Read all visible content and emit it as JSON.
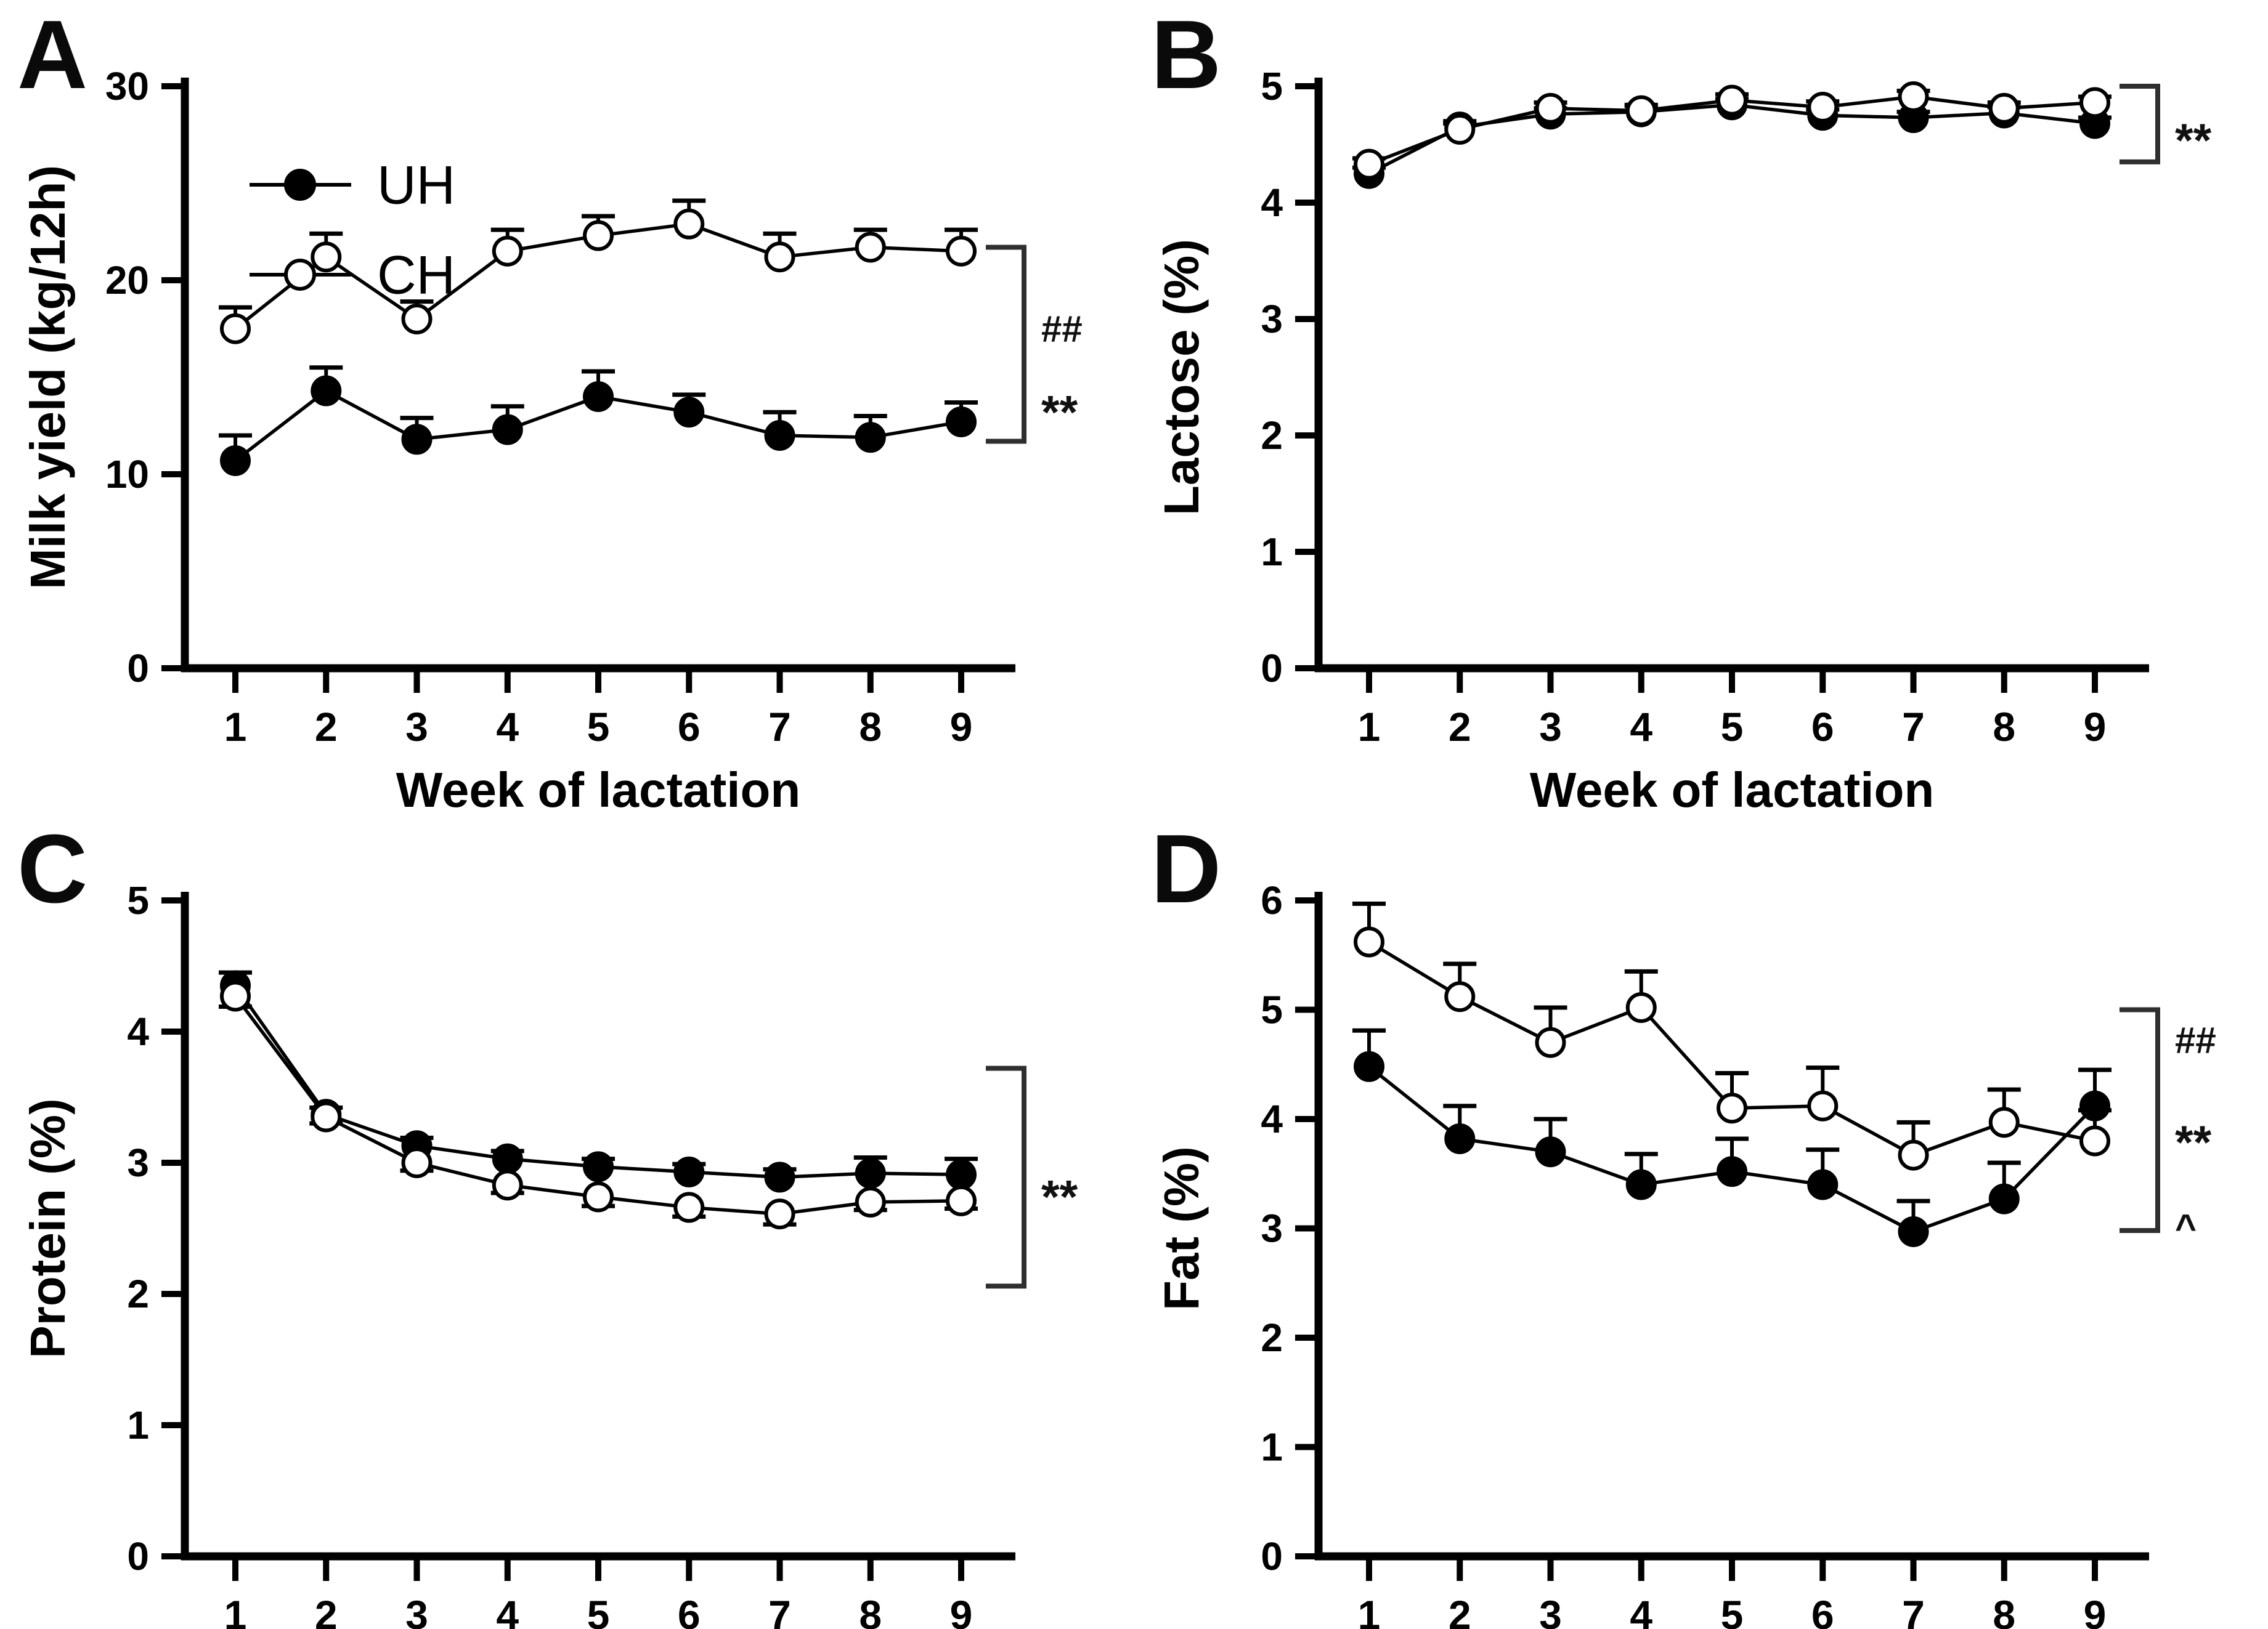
{
  "figure": {
    "background": "#ffffff",
    "ink": "#000000",
    "bracket_color": "#2f2f2f",
    "marker_styles": {
      "UH": "filled-circle",
      "CH": "open-circle"
    }
  },
  "chart_data": [
    {
      "panel_label": "A",
      "type": "line",
      "title": "",
      "xlabel": "Week of lactation",
      "ylabel": "Milk yield (kg/12h)",
      "categories": [
        1,
        2,
        3,
        4,
        5,
        6,
        7,
        8,
        9
      ],
      "ylim": [
        0,
        30
      ],
      "yticks": [
        0,
        10,
        20,
        30
      ],
      "grid": false,
      "legend": {
        "position": "top-left-inside",
        "entries": [
          {
            "label": "UH",
            "marker": "filled"
          },
          {
            "label": "CH",
            "marker": "open"
          }
        ]
      },
      "series": [
        {
          "name": "UH",
          "marker": "filled",
          "err_dir": "up",
          "values": [
            10.7,
            14.3,
            11.8,
            12.3,
            14.0,
            13.2,
            12.0,
            11.9,
            12.7
          ],
          "err": [
            1.3,
            1.2,
            1.1,
            1.2,
            1.3,
            0.9,
            1.2,
            1.1,
            1.0
          ]
        },
        {
          "name": "CH",
          "marker": "open",
          "err_dir": "up",
          "values": [
            17.5,
            21.2,
            18.0,
            21.5,
            22.3,
            22.9,
            21.2,
            21.7,
            21.5
          ],
          "err": [
            1.1,
            1.2,
            0.9,
            1.1,
            1.0,
            1.2,
            1.2,
            0.9,
            1.1
          ]
        }
      ],
      "annotation": {
        "bracket": {
          "from": 21.7,
          "to": 11.7
        },
        "labels": [
          {
            "text": "##",
            "at": 17.5
          },
          {
            "text": "**",
            "at": 14.0
          }
        ]
      }
    },
    {
      "panel_label": "B",
      "type": "line",
      "title": "",
      "xlabel": "Week of lactation",
      "ylabel": "Lactose (%)",
      "categories": [
        1,
        2,
        3,
        4,
        5,
        6,
        7,
        8,
        9
      ],
      "ylim": [
        0,
        5
      ],
      "yticks": [
        0,
        1,
        2,
        3,
        4,
        5
      ],
      "grid": false,
      "legend": null,
      "series": [
        {
          "name": "UH",
          "marker": "filled",
          "err_dir": "up",
          "values": [
            4.25,
            4.65,
            4.76,
            4.78,
            4.84,
            4.75,
            4.73,
            4.77,
            4.68
          ],
          "err": [
            0.05,
            0.05,
            0.05,
            0.05,
            0.05,
            0.05,
            0.05,
            0.05,
            0.05
          ]
        },
        {
          "name": "CH",
          "marker": "open",
          "err_dir": "up",
          "values": [
            4.33,
            4.63,
            4.81,
            4.79,
            4.88,
            4.82,
            4.91,
            4.81,
            4.86
          ],
          "err": [
            0.05,
            0.05,
            0.05,
            0.05,
            0.05,
            0.05,
            0.05,
            0.05,
            0.05
          ]
        }
      ],
      "annotation": {
        "bracket": {
          "from": 5.0,
          "to": 4.35
        },
        "labels": [
          {
            "text": "**",
            "at": 4.67
          }
        ]
      }
    },
    {
      "panel_label": "C",
      "type": "line",
      "title": "",
      "xlabel": "Week of lactation",
      "ylabel": "Protein (%)",
      "categories": [
        1,
        2,
        3,
        4,
        5,
        6,
        7,
        8,
        9
      ],
      "ylim": [
        0,
        5
      ],
      "yticks": [
        0,
        1,
        2,
        3,
        4,
        5
      ],
      "grid": false,
      "legend": null,
      "series": [
        {
          "name": "UH",
          "marker": "filled",
          "err_dir": "up",
          "values": [
            4.35,
            3.37,
            3.13,
            3.03,
            2.97,
            2.93,
            2.89,
            2.92,
            2.91
          ],
          "err": [
            0.1,
            0.05,
            0.06,
            0.06,
            0.06,
            0.06,
            0.06,
            0.12,
            0.12
          ]
        },
        {
          "name": "CH",
          "marker": "open",
          "err_dir": "down",
          "values": [
            4.27,
            3.35,
            3.0,
            2.83,
            2.74,
            2.66,
            2.61,
            2.7,
            2.71
          ],
          "err": [
            0.08,
            0.05,
            0.06,
            0.06,
            0.07,
            0.07,
            0.08,
            0.06,
            0.06
          ]
        }
      ],
      "annotation": {
        "bracket": {
          "from": 3.72,
          "to": 2.06
        },
        "labels": [
          {
            "text": "**",
            "at": 2.86
          }
        ]
      }
    },
    {
      "panel_label": "D",
      "type": "line",
      "title": "",
      "xlabel": "Week of lactation",
      "ylabel": "Fat (%)",
      "categories": [
        1,
        2,
        3,
        4,
        5,
        6,
        7,
        8,
        9
      ],
      "ylim": [
        0,
        6
      ],
      "yticks": [
        0,
        1,
        2,
        3,
        4,
        5,
        6
      ],
      "grid": false,
      "legend": null,
      "series": [
        {
          "name": "UH",
          "marker": "filled",
          "err_dir": "up",
          "values": [
            4.48,
            3.82,
            3.7,
            3.4,
            3.52,
            3.4,
            2.97,
            3.27,
            4.12
          ],
          "err": [
            0.33,
            0.3,
            0.3,
            0.28,
            0.3,
            0.32,
            0.28,
            0.33,
            0.33
          ]
        },
        {
          "name": "CH",
          "marker": "open",
          "err_dir": "up",
          "values": [
            5.62,
            5.12,
            4.7,
            5.02,
            4.1,
            4.12,
            3.67,
            3.97,
            3.8
          ],
          "err": [
            0.35,
            0.3,
            0.32,
            0.33,
            0.32,
            0.35,
            0.3,
            0.3,
            0.28
          ]
        }
      ],
      "annotation": {
        "bracket": {
          "from": 5.0,
          "to": 2.98
        },
        "labels": [
          {
            "text": "##",
            "at": 4.72
          },
          {
            "text": "**",
            "at": 3.93
          },
          {
            "text": "^",
            "at": 3.12
          }
        ]
      }
    }
  ]
}
